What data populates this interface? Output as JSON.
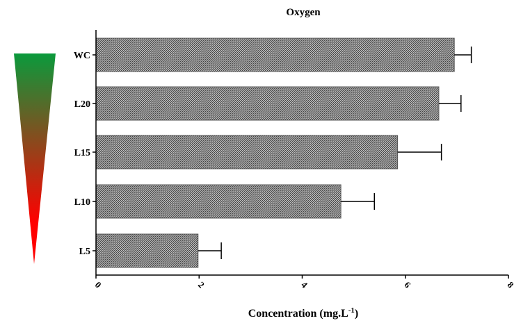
{
  "chart_data": {
    "type": "bar",
    "orientation": "horizontal",
    "title": "Oxygen",
    "xlabel": "Concentration (mg.L",
    "xlabel_sup": "-1",
    "xlabel_end": ")",
    "ylabel": "",
    "categories": [
      "WC",
      "L20",
      "L15",
      "L10",
      "L5"
    ],
    "values": [
      6.95,
      6.65,
      5.85,
      4.75,
      1.98
    ],
    "errors": [
      0.33,
      0.43,
      0.85,
      0.65,
      0.45
    ],
    "xlim": [
      0,
      8
    ],
    "xticks": [
      "0",
      "2",
      "4",
      "6",
      "8"
    ],
    "grid": false,
    "bar_fill": "#8c8c8c",
    "gradient_colors": [
      "#0a9a3c",
      "#ff0000"
    ]
  }
}
